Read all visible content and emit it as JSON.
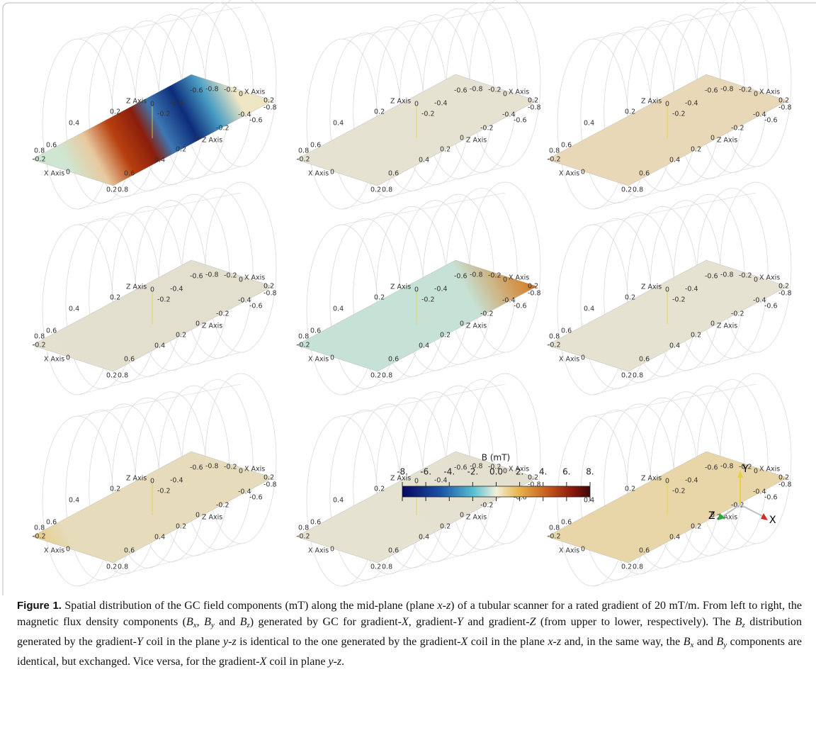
{
  "axis_labels": [
    "X Axis",
    "Z Axis",
    "0",
    "0.2",
    "0.4",
    "0.6",
    "0.8",
    "-0.2",
    "-0.4",
    "-0.6",
    "-0.8"
  ],
  "colorbar": {
    "title": "B (mT)",
    "range": [
      -8,
      8
    ],
    "ticks": [
      {
        "value": -8,
        "label": "-8."
      },
      {
        "value": -6,
        "label": "-6."
      },
      {
        "value": -4,
        "label": "-4."
      },
      {
        "value": -2,
        "label": "-2."
      },
      {
        "value": 0,
        "label": "0.0"
      },
      {
        "value": 2,
        "label": "2."
      },
      {
        "value": 4,
        "label": "4."
      },
      {
        "value": 6,
        "label": "6."
      },
      {
        "value": 8,
        "label": "8."
      }
    ]
  },
  "triad": {
    "y": "Y",
    "x": "X",
    "z": "Z"
  },
  "caption": [
    {
      "text": "Figure 1.",
      "style": "b"
    },
    "  Spatial distribution of the GC field components (mT) along the mid-plane (plane ",
    {
      "text": "x-z",
      "style": "i"
    },
    ") of a tubular scanner for a rated gradient of 20 mT/m. From left to right, the magnetic flux density components (",
    {
      "text": "B",
      "style": "i"
    },
    {
      "text": "x",
      "style": "sub"
    },
    ", ",
    {
      "text": "B",
      "style": "i"
    },
    {
      "text": "y",
      "style": "sub"
    },
    " and ",
    {
      "text": "B",
      "style": "i"
    },
    {
      "text": "z",
      "style": "sub"
    },
    ") generated by GC for gradient-",
    {
      "text": "X",
      "style": "i"
    },
    ", gradient-",
    {
      "text": "Y",
      "style": "i"
    },
    " and gradient-",
    {
      "text": "Z",
      "style": "i"
    },
    " (from upper to lower, respectively). The ",
    {
      "text": "B",
      "style": "i"
    },
    {
      "text": "z",
      "style": "sub"
    },
    " distribution generated by the gradient-",
    {
      "text": "Y",
      "style": "i"
    },
    " coil in the plane ",
    {
      "text": "y-z",
      "style": "i"
    },
    " is identical to the one generated by the gradient-",
    {
      "text": "X",
      "style": "i"
    },
    " coil in the plane ",
    {
      "text": "x-z",
      "style": "i"
    },
    " and, in the same way, the ",
    {
      "text": "B",
      "style": "i"
    },
    {
      "text": "x",
      "style": "sub"
    },
    " and ",
    {
      "text": "B",
      "style": "i"
    },
    {
      "text": "y",
      "style": "sub"
    },
    " components are identical, but exchanged. Vice versa, for the gradient-",
    {
      "text": "X",
      "style": "i"
    },
    " coil in plane ",
    {
      "text": "y-z",
      "style": "i"
    },
    "."
  ]
}
